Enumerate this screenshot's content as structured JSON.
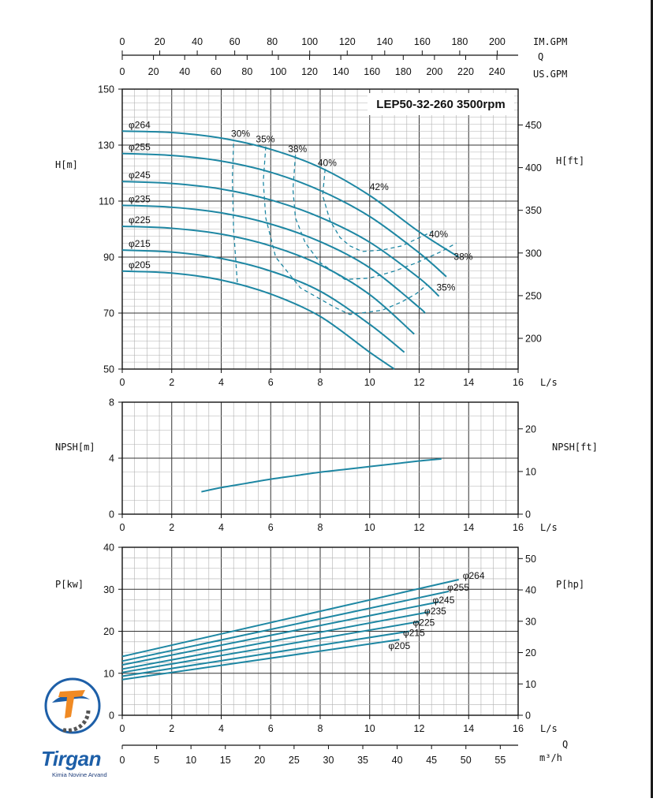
{
  "logo": {
    "text": "Tirgan",
    "subtitle": "Kimia Novine Arvand"
  },
  "colors": {
    "curve": "#1e87a3",
    "grid_major": "#333333",
    "grid_minor": "#b0b0b0",
    "logo_blue": "#1d5fa8",
    "logo_orange": "#f08a24"
  },
  "top_axes": {
    "impgpm": {
      "label": "IM.GPM",
      "ticks": [
        "0",
        "20",
        "40",
        "60",
        "80",
        "100",
        "120",
        "140",
        "160",
        "180",
        "200"
      ]
    },
    "q_label": "Q",
    "usgpm": {
      "label": "US.GPM",
      "ticks": [
        "0",
        "20",
        "40",
        "60",
        "80",
        "100",
        "120",
        "140",
        "160",
        "180",
        "200",
        "220",
        "240"
      ]
    }
  },
  "bottom_axes": {
    "ls_label": "L/s",
    "q_label": "Q",
    "m3h": {
      "label": "m³/h",
      "ticks": [
        "0",
        "5",
        "10",
        "15",
        "20",
        "25",
        "30",
        "35",
        "40",
        "45",
        "50",
        "55"
      ]
    }
  },
  "chart_data": [
    {
      "type": "line",
      "title": "LEP50-32-260 3500rpm",
      "xlabel": "L/s",
      "ylabel": "H[m]",
      "y2label": "H[ft]",
      "xlim": [
        0,
        16
      ],
      "ylim": [
        50,
        150
      ],
      "y2lim": [
        164,
        492
      ],
      "x_ticks": [
        "0",
        "2",
        "4",
        "6",
        "8",
        "10",
        "12",
        "14",
        "16"
      ],
      "y_ticks": [
        "50",
        "70",
        "90",
        "110",
        "130",
        "150"
      ],
      "y2_ticks": [
        "200",
        "250",
        "300",
        "350",
        "400",
        "450"
      ],
      "grid": true,
      "series": [
        {
          "name": "φ264",
          "x": [
            0,
            2,
            4,
            6,
            8,
            10,
            12,
            13.6
          ],
          "y": [
            135,
            134.5,
            132.5,
            128.5,
            122,
            112,
            99,
            90
          ]
        },
        {
          "name": "φ255",
          "x": [
            0,
            2,
            4,
            6,
            8,
            10,
            12,
            13.1
          ],
          "y": [
            127,
            126.3,
            124.3,
            120.3,
            113.8,
            104.5,
            91.5,
            83
          ]
        },
        {
          "name": "φ245",
          "x": [
            0,
            2,
            4,
            6,
            8,
            10,
            12,
            12.8
          ],
          "y": [
            117,
            116.3,
            114.3,
            110.4,
            104.2,
            95.3,
            82.5,
            76
          ]
        },
        {
          "name": "φ235",
          "x": [
            0,
            2,
            4,
            6,
            8,
            10,
            12,
            12.2
          ],
          "y": [
            108.5,
            107.8,
            105.8,
            101.8,
            95.5,
            86.2,
            72,
            70
          ]
        },
        {
          "name": "φ225",
          "x": [
            0,
            2,
            4,
            6,
            8,
            10,
            11.8
          ],
          "y": [
            101,
            100.3,
            98.2,
            94,
            87.2,
            76.6,
            62.5
          ]
        },
        {
          "name": "φ215",
          "x": [
            0,
            2,
            4,
            6,
            8,
            10,
            11.4
          ],
          "y": [
            92.5,
            91.8,
            89.5,
            85,
            77.8,
            66,
            56
          ]
        },
        {
          "name": "φ205",
          "x": [
            0,
            2,
            4,
            6,
            8,
            10,
            11.0
          ],
          "y": [
            85,
            84.3,
            81.8,
            76.8,
            68.8,
            56,
            50
          ]
        }
      ],
      "efficiency": [
        {
          "name": "30%",
          "x": [
            4.5,
            4.45,
            4.5,
            4.65
          ],
          "y": [
            130.5,
            118,
            100,
            81
          ]
        },
        {
          "name": "35%",
          "x": [
            5.8,
            5.7,
            5.8,
            6.2,
            7.2,
            8.6,
            9.2,
            10.5,
            11.3,
            11.9,
            12.3
          ],
          "y": [
            129.5,
            117,
            104,
            90,
            79,
            72,
            69.5,
            71,
            74,
            77,
            80
          ]
        },
        {
          "name": "38%",
          "x": [
            7.0,
            6.9,
            7.0,
            7.4,
            8.0,
            9.0,
            10.0,
            11.0,
            11.9,
            12.9,
            13.5
          ],
          "y": [
            126.5,
            114,
            104,
            95,
            88,
            82,
            82.5,
            85,
            88,
            92,
            95
          ]
        },
        {
          "name": "40%",
          "x": [
            8.2,
            8.1,
            8.4,
            8.8,
            9.2,
            9.7,
            10.5,
            11.3,
            11.9,
            12.5
          ],
          "y": [
            121.5,
            112,
            103,
            97,
            94,
            92,
            92.5,
            94,
            96.5,
            99
          ]
        },
        {
          "name": "42%",
          "x": [],
          "y": []
        }
      ],
      "efficiency_labels": [
        "30%",
        "35%",
        "38%",
        "40%",
        "42%",
        "40%",
        "38%",
        "35%"
      ]
    },
    {
      "type": "line",
      "xlabel": "L/s",
      "ylabel": "NPSH[m]",
      "y2label": "NPSH[ft]",
      "xlim": [
        0,
        16
      ],
      "ylim": [
        0,
        8
      ],
      "y2lim": [
        0,
        26.25
      ],
      "x_ticks": [
        "0",
        "2",
        "4",
        "6",
        "8",
        "10",
        "12",
        "14",
        "16"
      ],
      "y_ticks": [
        "0",
        "4",
        "8"
      ],
      "y2_ticks": [
        "0",
        "10",
        "20"
      ],
      "grid": true,
      "series": [
        {
          "x": [
            3.2,
            4,
            5,
            6,
            7,
            8,
            9,
            10,
            11,
            12,
            12.9
          ],
          "y": [
            1.6,
            1.9,
            2.2,
            2.5,
            2.75,
            3.0,
            3.2,
            3.4,
            3.6,
            3.8,
            3.95
          ]
        }
      ]
    },
    {
      "type": "line",
      "xlabel": "L/s",
      "ylabel": "P[kw]",
      "y2label": "P[hp]",
      "xlim": [
        0,
        16
      ],
      "ylim": [
        0,
        40
      ],
      "y2lim": [
        0,
        53.6
      ],
      "x_ticks": [
        "0",
        "2",
        "4",
        "6",
        "8",
        "10",
        "12",
        "14",
        "16"
      ],
      "y_ticks": [
        "0",
        "10",
        "20",
        "30",
        "40"
      ],
      "y2_ticks": [
        "0",
        "10",
        "20",
        "30",
        "40",
        "50"
      ],
      "grid": true,
      "series": [
        {
          "name": "φ264",
          "x": [
            0,
            13.6
          ],
          "y": [
            14,
            32.3
          ]
        },
        {
          "name": "φ255",
          "x": [
            0,
            13.2
          ],
          "y": [
            12.9,
            29.5
          ]
        },
        {
          "name": "φ245",
          "x": [
            0,
            12.8
          ],
          "y": [
            12.0,
            27.0
          ]
        },
        {
          "name": "φ235",
          "x": [
            0,
            12.4
          ],
          "y": [
            11.0,
            24.6
          ]
        },
        {
          "name": "φ225",
          "x": [
            0,
            12.0
          ],
          "y": [
            10.2,
            22.3
          ]
        },
        {
          "name": "φ215",
          "x": [
            0,
            11.6
          ],
          "y": [
            9.3,
            20.0
          ]
        },
        {
          "name": "φ205",
          "x": [
            0,
            11.2
          ],
          "y": [
            8.5,
            18.0
          ]
        }
      ]
    }
  ]
}
